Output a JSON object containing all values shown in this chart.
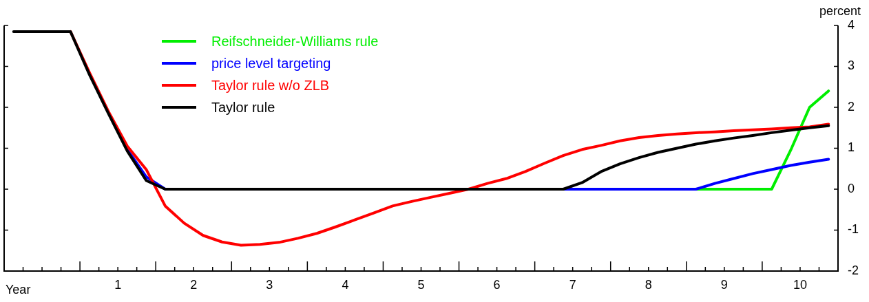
{
  "chart_data": {
    "type": "line",
    "xlabel": "Year",
    "ylabel": "percent",
    "legend": "top left",
    "marker": "none",
    "line_style": "solid",
    "grid": false,
    "tick_labels": "xy",
    "xlim": [
      -0.5,
      10.5
    ],
    "xticks": [
      {
        "value": -0.25,
        "label": null
      },
      {
        "value": 0,
        "label": null
      },
      {
        "value": 0.25,
        "label": null
      },
      {
        "value": 0.5,
        "label": null
      },
      {
        "value": 0.75,
        "label": null
      },
      1,
      {
        "value": 1.25,
        "label": null
      },
      {
        "value": 1.5,
        "label": null
      },
      {
        "value": 1.75,
        "label": null
      },
      2,
      {
        "value": 2.25,
        "label": null
      },
      {
        "value": 2.5,
        "label": null
      },
      {
        "value": 2.75,
        "label": null
      },
      3,
      {
        "value": 3.25,
        "label": null
      },
      {
        "value": 3.5,
        "label": null
      },
      {
        "value": 3.75,
        "label": null
      },
      4,
      {
        "value": 4.25,
        "label": null
      },
      {
        "value": 4.5,
        "label": null
      },
      {
        "value": 4.75,
        "label": null
      },
      5,
      {
        "value": 5.25,
        "label": null
      },
      {
        "value": 5.5,
        "label": null
      },
      {
        "value": 5.75,
        "label": null
      },
      6,
      {
        "value": 6.25,
        "label": null
      },
      {
        "value": 6.5,
        "label": null
      },
      {
        "value": 6.75,
        "label": null
      },
      7,
      {
        "value": 7.25,
        "label": null
      },
      {
        "value": 7.5,
        "label": null
      },
      {
        "value": 7.75,
        "label": null
      },
      8,
      {
        "value": 8.25,
        "label": null
      },
      {
        "value": 8.5,
        "label": null
      },
      {
        "value": 8.75,
        "label": null
      },
      9,
      {
        "value": 9.25,
        "label": null
      },
      {
        "value": 9.5,
        "label": null
      },
      {
        "value": 9.75,
        "label": null
      },
      10,
      {
        "value": 10.25,
        "label": null
      }
    ],
    "ylim": [
      -2,
      4
    ],
    "yticks": [
      -2,
      -1,
      0,
      1,
      2,
      3,
      4
    ],
    "x": [
      -0.375,
      -0.125,
      0.125,
      0.375,
      0.625,
      0.875,
      1.125,
      1.375,
      1.625,
      1.875,
      2.125,
      2.375,
      2.625,
      2.875,
      3.125,
      3.375,
      3.625,
      3.875,
      4.125,
      4.375,
      4.625,
      4.875,
      5.125,
      5.375,
      5.625,
      5.875,
      6.125,
      6.375,
      6.625,
      6.875,
      7.125,
      7.375,
      7.625,
      7.875,
      8.125,
      8.375,
      8.625,
      8.875,
      9.125,
      9.375,
      9.625,
      9.875,
      10.125,
      10.375
    ],
    "series": [
      {
        "name": "Reifschneider-Williams rule",
        "color": "#00ee00",
        "values": [
          null,
          null,
          null,
          null,
          null,
          null,
          null,
          null,
          null,
          null,
          null,
          null,
          null,
          null,
          null,
          null,
          null,
          null,
          null,
          null,
          null,
          null,
          null,
          null,
          null,
          null,
          null,
          null,
          null,
          null,
          null,
          null,
          null,
          null,
          null,
          null,
          0,
          0,
          0,
          0,
          0,
          0.95,
          2.0,
          2.4
        ]
      },
      {
        "name": "price level targeting",
        "color": "#0000ff",
        "values": [
          null,
          null,
          null,
          null,
          null,
          null,
          0.97,
          0.3,
          0,
          null,
          null,
          null,
          null,
          null,
          null,
          null,
          null,
          null,
          null,
          null,
          null,
          null,
          null,
          null,
          null,
          null,
          null,
          null,
          null,
          0,
          0,
          0,
          0,
          0,
          0,
          0,
          0,
          0.14,
          0.26,
          0.38,
          0.48,
          0.58,
          0.66,
          0.73
        ]
      },
      {
        "name": "Taylor rule w/o ZLB",
        "color": "#ff0000",
        "values": [
          null,
          null,
          null,
          3.85,
          2.85,
          1.9,
          1.05,
          0.48,
          -0.41,
          -0.83,
          -1.13,
          -1.29,
          -1.37,
          -1.35,
          -1.3,
          -1.2,
          -1.08,
          -0.92,
          -0.75,
          -0.58,
          -0.41,
          -0.3,
          -0.2,
          -0.1,
          0.0,
          0.14,
          0.26,
          0.43,
          0.63,
          0.82,
          0.97,
          1.07,
          1.18,
          1.26,
          1.31,
          1.35,
          1.38,
          1.4,
          1.43,
          1.45,
          1.47,
          1.5,
          1.52,
          1.59
        ]
      },
      {
        "name": "Taylor rule",
        "color": "#000000",
        "values": [
          3.85,
          3.85,
          3.85,
          3.85,
          2.8,
          1.85,
          0.93,
          0.21,
          0,
          0,
          0,
          0,
          0,
          0,
          0,
          0,
          0,
          0,
          0,
          0,
          0,
          0,
          0,
          0,
          0,
          0,
          0,
          0,
          0,
          0,
          0.16,
          0.43,
          0.62,
          0.77,
          0.9,
          1.0,
          1.1,
          1.18,
          1.25,
          1.31,
          1.38,
          1.44,
          1.5,
          1.55
        ]
      }
    ]
  }
}
